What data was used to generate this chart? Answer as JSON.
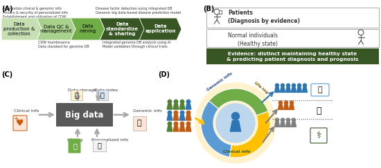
{
  "bg_color": "#ffffff",
  "panel_A_label": "(A)",
  "panel_B_label": "(B)",
  "panel_C_label": "(C)",
  "panel_D_label": "(D)",
  "arrows": [
    {
      "label": "Data\nproduction &\ncollection",
      "color": "#c6e0b4",
      "text_color": "#000000"
    },
    {
      "label": "Data QC &\nmanagement",
      "color": "#a9d18e",
      "text_color": "#000000"
    },
    {
      "label": "Data\nmining",
      "color": "#70ad47",
      "text_color": "#000000"
    },
    {
      "label": "Data\nstandardize\n& sharing",
      "color": "#375623",
      "text_color": "#ffffff"
    },
    {
      "label": "Data\napplication",
      "color": "#375623",
      "text_color": "#ffffff"
    }
  ],
  "top_text_left": "Association clinical & genomic info\nPrivacy & security of personalized info\nEstablishment and utilization of CDW",
  "top_text_right": "Disease factor detection using integrated DB\nGenomic big data-based disease prediction model",
  "bottom_text_left": "CDW maintenance\nData standard for genome DB",
  "bottom_text_right": "Integrated genome DB analysis using AI\nModel validation through clinical trials",
  "patients_text": "Patients\n(Diagnosis by evidence)",
  "normal_text": "Normal individuals\n(Healthy state)",
  "evidence_text": "Evidence: distinct maintaining healthy state\n& predicting patient diagnosis and prognosis",
  "evidence_bg": "#375623",
  "bigdata_text": "Big data",
  "clinical_info_c": "Clinical info",
  "life_log_c": "Life-log",
  "data_storage_c": "Data storage",
  "data_index_c": "Data index",
  "personalized_info_c": "Personalized info",
  "genomic_info_c": "Genomic info",
  "genomic_info_d": "Genomic info",
  "lifelog_d": "Life-log",
  "clinical_info_d": "Clinical info",
  "donut_blue": "#5b9bd5",
  "donut_green": "#70ad47",
  "donut_yellow": "#ffc000",
  "donut_center": "#bdd7ee",
  "person_blue": "#2e75b6",
  "person_orange": "#c55a11",
  "person_green": "#538135",
  "person_gray": "#808080",
  "person_dark_green": "#375623",
  "dashed_color": "#595959",
  "arrow_gray": "#aaaaaa"
}
